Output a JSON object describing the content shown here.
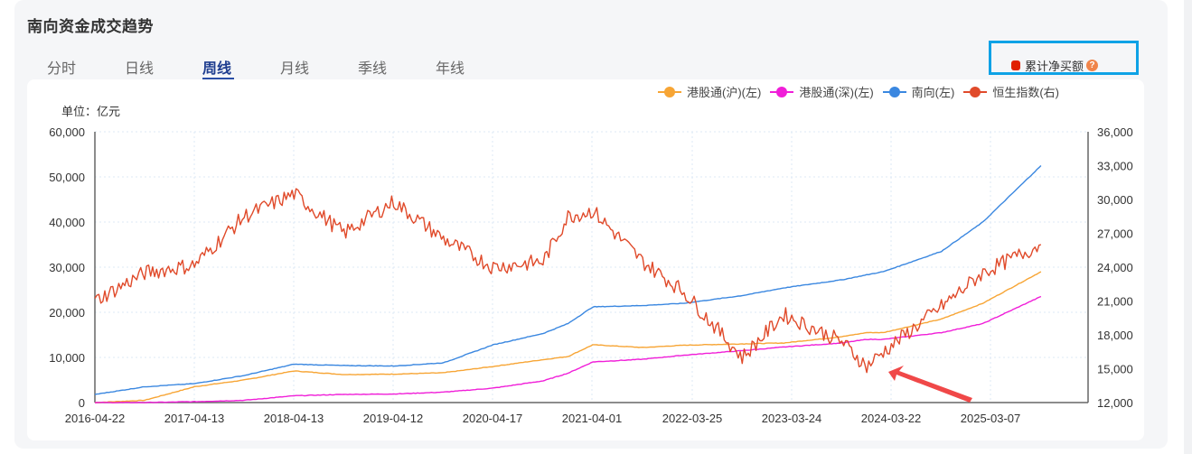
{
  "page": {
    "title": "南向资金成交趋势",
    "tabs": [
      {
        "label": "分时",
        "active": false
      },
      {
        "label": "日线",
        "active": false
      },
      {
        "label": "周线",
        "active": true
      },
      {
        "label": "月线",
        "active": false
      },
      {
        "label": "季线",
        "active": false
      },
      {
        "label": "年线",
        "active": false
      }
    ],
    "cumulative_toggle": {
      "label": "累计净买额",
      "color": "#e02000",
      "help_icon": "question-icon"
    },
    "unit_label": "单位：亿元",
    "highlight_color": "#0ea2e6"
  },
  "chart_data": {
    "type": "line",
    "title": "南向资金成交趋势",
    "unit": "亿元",
    "x_tick_labels": [
      "2016-04-22",
      "2017-04-13",
      "2018-04-13",
      "2019-04-12",
      "2020-04-17",
      "2021-04-01",
      "2022-03-25",
      "2023-03-24",
      "2024-03-22",
      "2025-03-07"
    ],
    "left_axis": {
      "label": "亿元",
      "min": 0,
      "max": 60000,
      "ticks": [
        "0",
        "10,000",
        "20,000",
        "30,000",
        "40,000",
        "50,000",
        "60,000"
      ]
    },
    "right_axis": {
      "min": 12000,
      "max": 36000,
      "ticks": [
        "12,000",
        "15,000",
        "18,000",
        "21,000",
        "24,000",
        "27,000",
        "30,000",
        "33,000",
        "36,000"
      ]
    },
    "legend": [
      {
        "name": "港股通(沪)(左)",
        "color": "#f7a535"
      },
      {
        "name": "港股通(深)(左)",
        "color": "#f01ed8"
      },
      {
        "name": "南向(左)",
        "color": "#3a87e0"
      },
      {
        "name": "恒生指数(右)",
        "color": "#e04a2a"
      }
    ],
    "x": [
      "2016-04",
      "2016-10",
      "2017-04",
      "2017-10",
      "2018-04",
      "2018-10",
      "2019-04",
      "2019-10",
      "2020-04",
      "2020-10",
      "2021-01",
      "2021-04",
      "2021-10",
      "2022-03",
      "2022-10",
      "2023-03",
      "2023-10",
      "2024-01",
      "2024-03",
      "2024-10",
      "2025-03",
      "2025-10"
    ],
    "series": [
      {
        "name": "港股通(沪)(左)",
        "axis": "left",
        "values": [
          0,
          500,
          3500,
          5000,
          7000,
          6200,
          6300,
          6600,
          8000,
          9500,
          10200,
          12800,
          12200,
          12700,
          13000,
          13200,
          14600,
          15500,
          15500,
          18500,
          22000,
          29000
        ]
      },
      {
        "name": "港股通(深)(左)",
        "axis": "left",
        "values": [
          0,
          0,
          200,
          500,
          1500,
          1800,
          1900,
          2300,
          3200,
          4800,
          6500,
          9000,
          9600,
          10500,
          11500,
          12300,
          13200,
          14000,
          14000,
          15500,
          17500,
          23500
        ]
      },
      {
        "name": "南向(左)",
        "axis": "left",
        "values": [
          1800,
          3500,
          4200,
          6000,
          8500,
          8200,
          8100,
          8800,
          12800,
          15300,
          17500,
          21200,
          21500,
          22000,
          23700,
          25400,
          27200,
          28300,
          29000,
          33500,
          40000,
          52500
        ]
      },
      {
        "name": "恒生指数(右)",
        "axis": "right",
        "values": [
          21000,
          23500,
          24200,
          28500,
          30500,
          27000,
          29800,
          26500,
          24000,
          24500,
          28500,
          29000,
          24500,
          21800,
          16000,
          19800,
          17400,
          15200,
          16500,
          20500,
          23500,
          26000
        ]
      }
    ],
    "annotations": [
      {
        "type": "arrow",
        "color": "#f04848",
        "target": "2024-01 low of 恒生指数"
      }
    ],
    "grid": true,
    "legend_position": "top-right"
  }
}
